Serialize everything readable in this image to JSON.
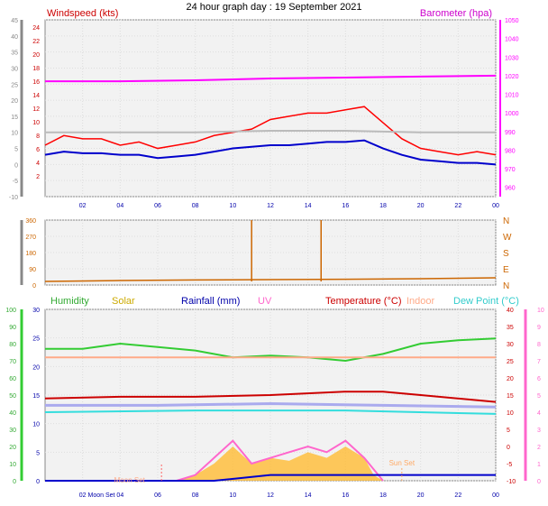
{
  "title": "24 hour graph day : 19 September 2021",
  "chart_data": [
    {
      "type": "line",
      "name": "wind-baro-panel",
      "labels": {
        "wind": "Windspeed (kts)",
        "baro": "Barometer (hpa)"
      },
      "x_ticks": [
        "02",
        "04",
        "06",
        "08",
        "10",
        "12",
        "14",
        "16",
        "18",
        "20",
        "22",
        "00"
      ],
      "x_range_hours": [
        0,
        24
      ],
      "y_left_ticks": [
        "-10",
        "-5",
        "0",
        "5",
        "10",
        "15",
        "20",
        "25",
        "30",
        "35",
        "40",
        "45"
      ],
      "y_left_range": [
        -10,
        45
      ],
      "y_right_ticks": [
        "960",
        "970",
        "980",
        "990",
        "1000",
        "1010",
        "1020",
        "1030",
        "1040",
        "1050"
      ],
      "y_right_ticks_red": [
        "2",
        "4",
        "6",
        "8",
        "10",
        "12",
        "14",
        "16",
        "18",
        "20",
        "22",
        "24"
      ],
      "y_right_range": [
        955,
        1050
      ],
      "colors": {
        "gust": "#ff0000",
        "avg": "#0000cc",
        "baro": "#ff00ff",
        "gray": "#bbbbbb"
      },
      "series": [
        {
          "name": "Barometer",
          "axis": "right",
          "x": [
            0,
            4,
            8,
            12,
            16,
            20,
            24
          ],
          "values": [
            1017,
            1017,
            1017.5,
            1018.5,
            1019,
            1019.5,
            1020
          ]
        },
        {
          "name": "Windspeed",
          "axis": "left",
          "x": [
            0,
            1,
            2,
            3,
            4,
            5,
            6,
            7,
            8,
            9,
            10,
            11,
            12,
            13,
            14,
            15,
            16,
            17,
            18,
            19,
            20,
            21,
            22,
            23,
            24
          ],
          "values": [
            3,
            4,
            3.5,
            3.5,
            3,
            3,
            2,
            2.5,
            3,
            4,
            5,
            5.5,
            6,
            6,
            6.5,
            7,
            7,
            7.5,
            5,
            3,
            1.5,
            1,
            0.5,
            0.5,
            0
          ]
        },
        {
          "name": "Gust",
          "axis": "left",
          "x": [
            0,
            1,
            2,
            3,
            4,
            5,
            6,
            7,
            8,
            9,
            10,
            11,
            12,
            13,
            14,
            15,
            16,
            17,
            18,
            19,
            20,
            21,
            22,
            23,
            24
          ],
          "values": [
            6,
            9,
            8,
            8,
            6,
            7,
            5,
            6,
            7,
            9,
            10,
            11,
            14,
            15,
            16,
            16,
            17,
            18,
            13,
            8,
            5,
            4,
            3,
            4,
            3
          ]
        },
        {
          "name": "Gray",
          "axis": "left",
          "x": [
            0,
            4,
            8,
            12,
            16,
            20,
            24
          ],
          "values": [
            10,
            10,
            10,
            10.5,
            10.5,
            10,
            10
          ]
        }
      ]
    },
    {
      "type": "line",
      "name": "wind-direction-panel",
      "y_left_ticks": [
        "0",
        "90",
        "180",
        "270",
        "360"
      ],
      "y_right_ticks": [
        "N",
        "E",
        "S",
        "W",
        "N"
      ],
      "y_range": [
        0,
        360
      ],
      "color": "#cc6600",
      "spikes_hours": [
        11.0,
        14.7
      ],
      "series": [
        {
          "name": "Direction",
          "x": [
            0,
            4,
            8,
            12,
            16,
            20,
            24
          ],
          "values": [
            20,
            25,
            28,
            30,
            32,
            35,
            40
          ]
        }
      ]
    },
    {
      "type": "area",
      "name": "temp-humidity-panel",
      "labels": {
        "humidity": "Humidity",
        "solar": "Solar",
        "rain": "Rainfall (mm)",
        "uv": "UV",
        "temp": "Temperature (°C)",
        "indoor": "Indoor",
        "dew": "Dew Point (°C)"
      },
      "left_outer_ticks": [
        "0",
        "10",
        "20",
        "30",
        "40",
        "50",
        "60",
        "70",
        "80",
        "90",
        "100"
      ],
      "left_inner_ticks": [
        "0",
        "5",
        "10",
        "15",
        "20",
        "25",
        "30"
      ],
      "right_inner_ticks": [
        "-10",
        "-5",
        "0",
        "5",
        "10",
        "15",
        "20",
        "25",
        "30",
        "35",
        "40"
      ],
      "right_outer_ticks": [
        "0",
        "1",
        "2",
        "3",
        "4",
        "5",
        "6",
        "7",
        "8",
        "9",
        "10"
      ],
      "x_ticks": [
        "02",
        "04",
        "06",
        "08",
        "10",
        "12",
        "14",
        "16",
        "18",
        "20",
        "22",
        "00"
      ],
      "annotations": {
        "moonset": "Moon Set",
        "sunset": "Sun Set",
        "moonset_axis": "Moon Set"
      },
      "colors": {
        "humidity": "#33cc33",
        "solar": "#ffbb33",
        "rain": "#0000cc",
        "uv": "#ff66cc",
        "temp": "#cc0000",
        "indoor": "#ffaa88",
        "dew": "#33dddd",
        "lav": "#aaaaee"
      },
      "series": [
        {
          "name": "Humidity",
          "axis": "left-outer",
          "x": [
            0,
            2,
            4,
            6,
            8,
            10,
            12,
            14,
            16,
            18,
            20,
            22,
            24
          ],
          "values": [
            77,
            77,
            80,
            78,
            76,
            72,
            73,
            72,
            70,
            74,
            80,
            82,
            83
          ]
        },
        {
          "name": "Indoor",
          "axis": "right-inner",
          "x": [
            0,
            6,
            12,
            18,
            24
          ],
          "values": [
            26,
            26,
            26,
            26,
            26
          ]
        },
        {
          "name": "Temperature (°C)",
          "axis": "right-inner",
          "x": [
            0,
            4,
            8,
            12,
            16,
            18,
            20,
            24
          ],
          "values": [
            14,
            14.5,
            14.5,
            15,
            16,
            16,
            15,
            13
          ]
        },
        {
          "name": "Lavender",
          "axis": "right-inner",
          "x": [
            0,
            6,
            12,
            18,
            24
          ],
          "values": [
            12,
            12,
            12.5,
            12,
            11.5
          ]
        },
        {
          "name": "Dew Point (°C)",
          "axis": "right-inner",
          "x": [
            0,
            8,
            16,
            24
          ],
          "values": [
            10,
            10.5,
            10.5,
            9.5
          ]
        },
        {
          "name": "Solar",
          "axis": "left-inner",
          "x": [
            7,
            8,
            9,
            10,
            11,
            12,
            13,
            14,
            15,
            16,
            17,
            17.5,
            18
          ],
          "values": [
            0,
            1,
            3,
            6,
            3,
            4,
            3.5,
            5,
            4,
            6,
            4,
            1,
            0
          ]
        },
        {
          "name": "UV",
          "axis": "left-inner",
          "x": [
            7,
            8,
            9,
            10,
            11,
            12,
            13,
            14,
            15,
            16,
            17,
            18
          ],
          "values": [
            0,
            1,
            4,
            7,
            3,
            4,
            5,
            6,
            5,
            7,
            4,
            0
          ]
        },
        {
          "name": "Rainfall (mm)",
          "axis": "left-inner",
          "x": [
            0,
            9,
            12,
            24
          ],
          "values": [
            0,
            0,
            1,
            1
          ]
        }
      ]
    }
  ]
}
